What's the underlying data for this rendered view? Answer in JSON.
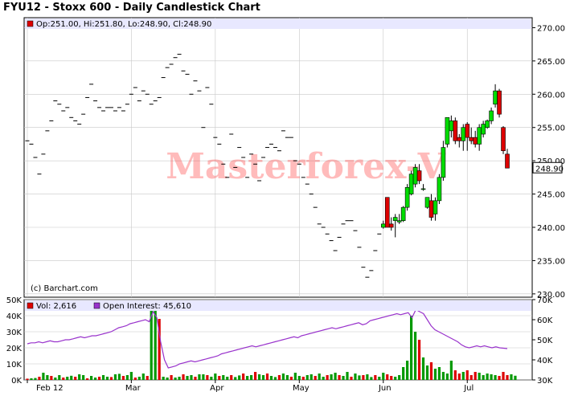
{
  "title": "FYU12 - Stoxx 600 - Daily Candlestick Chart",
  "watermark": "Masterforex-V",
  "credit": "(c) Barchart.com",
  "price_legend": "Op:251.00, Hi:251.80, Lo:248.90, Cl:248.90",
  "last_price_label": "248.90",
  "volume_legend": "Vol: 2,616",
  "oi_legend": "Open Interest: 45,610",
  "colors": {
    "up": "#00dd00",
    "down": "#dd0000",
    "neutral": "#000000",
    "oi": "#9933cc",
    "vol_up": "#009900",
    "vol_down": "#dd0000",
    "vol_neutral": "#000099",
    "frame": "#000000",
    "grid": "#c8c8c8",
    "legend_bg": "#e8e8ff"
  },
  "chart_data": [
    {
      "type": "candlestick",
      "title": "FYU12 - Stoxx 600 - Daily Candlestick Chart",
      "y_ticks": [
        "230.00",
        "235.00",
        "240.00",
        "245.00",
        "250.00",
        "255.00",
        "260.00",
        "265.00",
        "270.00"
      ],
      "ylim": [
        229.5,
        271.5
      ],
      "x_ticks": [
        "Feb 12",
        "Mar",
        "Apr",
        "May",
        "Jun",
        "Jul"
      ],
      "last_value": 248.9,
      "grid": true,
      "ohlc": [
        [
          253,
          253,
          253,
          253
        ],
        [
          252.5,
          252.5,
          252.5,
          252.5
        ],
        [
          250.5,
          250.5,
          250.5,
          250.5
        ],
        [
          248,
          248,
          248,
          248
        ],
        [
          251,
          251,
          251,
          251
        ],
        [
          254.5,
          254.5,
          254.5,
          254.5
        ],
        [
          256,
          256,
          256,
          256
        ],
        [
          259,
          259,
          259,
          259
        ],
        [
          258.5,
          258.5,
          258.5,
          258.5
        ],
        [
          257.5,
          257.5,
          257.5,
          257.5
        ],
        [
          258,
          258,
          258,
          258
        ],
        [
          256.5,
          256.5,
          256.5,
          256.5
        ],
        [
          256,
          256,
          256,
          256
        ],
        [
          255.5,
          255.5,
          255.5,
          255.5
        ],
        [
          257,
          257,
          257,
          257
        ],
        [
          259.5,
          259.5,
          259.5,
          259.5
        ],
        [
          261.5,
          261.5,
          261.5,
          261.5
        ],
        [
          259,
          259,
          259,
          259
        ],
        [
          258,
          258,
          258,
          258
        ],
        [
          257.5,
          257.5,
          257.5,
          257.5
        ],
        [
          258,
          258,
          258,
          258
        ],
        [
          258,
          258,
          258,
          258
        ],
        [
          257.5,
          257.5,
          257.5,
          257.5
        ],
        [
          258,
          258,
          258,
          258
        ],
        [
          257.5,
          257.5,
          257.5,
          257.5
        ],
        [
          258.5,
          258.5,
          258.5,
          258.5
        ],
        [
          260,
          260,
          260,
          260
        ],
        [
          261,
          261,
          261,
          261
        ],
        [
          259,
          259,
          259,
          259
        ],
        [
          260.5,
          260.5,
          260.5,
          260.5
        ],
        [
          260,
          260,
          260,
          260
        ],
        [
          258.5,
          258.5,
          258.5,
          258.5
        ],
        [
          259,
          259,
          259,
          259
        ],
        [
          259.5,
          259.5,
          259.5,
          259.5
        ],
        [
          262.5,
          262.5,
          262.5,
          262.5
        ],
        [
          264,
          264,
          264,
          264
        ],
        [
          264.5,
          264.5,
          264.5,
          264.5
        ],
        [
          265.5,
          265.5,
          265.5,
          265.5
        ],
        [
          266,
          266,
          266,
          266
        ],
        [
          263.5,
          263.5,
          263.5,
          263.5
        ],
        [
          263,
          263,
          263,
          263
        ],
        [
          260,
          260,
          260,
          260
        ],
        [
          262,
          262,
          262,
          262
        ],
        [
          260.5,
          260.5,
          260.5,
          260.5
        ],
        [
          255,
          255,
          255,
          255
        ],
        [
          261,
          261,
          261,
          261
        ],
        [
          258.5,
          258.5,
          258.5,
          258.5
        ],
        [
          253.5,
          253.5,
          253.5,
          253.5
        ],
        [
          252.5,
          252.5,
          252.5,
          252.5
        ],
        [
          249.5,
          249.5,
          249.5,
          249.5
        ],
        [
          247.5,
          247.5,
          247.5,
          247.5
        ],
        [
          254,
          254,
          254,
          254
        ],
        [
          249,
          249,
          249,
          249
        ],
        [
          252,
          252,
          252,
          252
        ],
        [
          250.5,
          250.5,
          250.5,
          250.5
        ],
        [
          247.5,
          247.5,
          247.5,
          247.5
        ],
        [
          251,
          251,
          251,
          251
        ],
        [
          249.5,
          249.5,
          249.5,
          249.5
        ],
        [
          247,
          247,
          247,
          247
        ],
        [
          250.5,
          250.5,
          250.5,
          250.5
        ],
        [
          252,
          252,
          252,
          252
        ],
        [
          252.5,
          252.5,
          252.5,
          252.5
        ],
        [
          252,
          252,
          252,
          252
        ],
        [
          251.5,
          251.5,
          251.5,
          251.5
        ],
        [
          254.5,
          254.5,
          254.5,
          254.5
        ],
        [
          253.5,
          253.5,
          253.5,
          253.5
        ],
        [
          253.5,
          253.5,
          253.5,
          253.5
        ],
        [
          250,
          250,
          250,
          250
        ],
        [
          249.5,
          249.5,
          249.5,
          249.5
        ],
        [
          247.5,
          247.5,
          247.5,
          247.5
        ],
        [
          246.5,
          246.5,
          246.5,
          246.5
        ],
        [
          245,
          245,
          245,
          245
        ],
        [
          243,
          243,
          243,
          243
        ],
        [
          240.5,
          240.5,
          240.5,
          240.5
        ],
        [
          240,
          240,
          240,
          240
        ],
        [
          239,
          239,
          239,
          239
        ],
        [
          238,
          238,
          238,
          238
        ],
        [
          236.5,
          236.5,
          236.5,
          236.5
        ],
        [
          238.5,
          238.5,
          238.5,
          238.5
        ],
        [
          240.5,
          240.5,
          240.5,
          240.5
        ],
        [
          241,
          241,
          241,
          241
        ],
        [
          241,
          241,
          241,
          241
        ],
        [
          239.5,
          239.5,
          239.5,
          239.5
        ],
        [
          237,
          237,
          237,
          237
        ],
        [
          234,
          234,
          234,
          234
        ],
        [
          232.5,
          232.5,
          232.5,
          232.5
        ],
        [
          233.5,
          233.5,
          233.5,
          233.5
        ],
        [
          236.5,
          236.5,
          236.5,
          236.5
        ],
        [
          239,
          239,
          239,
          239
        ],
        [
          240,
          241,
          239.8,
          240.5
        ],
        [
          244.5,
          244.5,
          240,
          240
        ],
        [
          240.5,
          241.5,
          239.5,
          240
        ],
        [
          241,
          242,
          238.5,
          241.5
        ],
        [
          240.8,
          242,
          240.5,
          241
        ],
        [
          241,
          243.2,
          240.8,
          243
        ],
        [
          243,
          246.5,
          242.5,
          246
        ],
        [
          245,
          248.5,
          244.8,
          248
        ],
        [
          246.5,
          249.5,
          246,
          249
        ],
        [
          248.5,
          249.5,
          246.5,
          247
        ],
        [
          245.8,
          246.5,
          245.5,
          245.8
        ],
        [
          243,
          244.5,
          242.8,
          244.5
        ],
        [
          244,
          245,
          241,
          241.5
        ],
        [
          242,
          244.5,
          241,
          244
        ],
        [
          244,
          248,
          243.5,
          247.5
        ],
        [
          247.5,
          253,
          247,
          252
        ],
        [
          252.5,
          256.5,
          252,
          256.5
        ],
        [
          254.5,
          256.8,
          253.5,
          256
        ],
        [
          256,
          256.5,
          252.5,
          253
        ],
        [
          253.5,
          254,
          252,
          253
        ],
        [
          253,
          255.5,
          251.5,
          255
        ],
        [
          255.5,
          255.8,
          251.5,
          253.5
        ],
        [
          253.5,
          255,
          252.5,
          253
        ],
        [
          253.5,
          254.5,
          252,
          252.5
        ],
        [
          252.5,
          255.5,
          251.5,
          255
        ],
        [
          254,
          256,
          253.5,
          255.5
        ],
        [
          255,
          256.2,
          254.8,
          256
        ],
        [
          256,
          258,
          255.5,
          257.5
        ],
        [
          258.5,
          261.5,
          258,
          260.5
        ],
        [
          260.5,
          260.8,
          256.5,
          257
        ],
        [
          255,
          255.2,
          251,
          251.5
        ],
        [
          251,
          251.8,
          248.9,
          248.9
        ]
      ],
      "volume": [
        800,
        1000,
        1200,
        2000,
        4500,
        3000,
        2500,
        1500,
        3000,
        1500,
        2000,
        2600,
        2000,
        3500,
        3000,
        1000,
        2500,
        1500,
        2000,
        3000,
        2000,
        1800,
        3500,
        3800,
        2500,
        3000,
        5000,
        1500,
        2000,
        4000,
        2500,
        44000,
        45000,
        38000,
        2000,
        1500,
        3000,
        1500,
        2000,
        3500,
        2500,
        3000,
        2000,
        3500,
        3500,
        3000,
        2000,
        4000,
        2500,
        3000,
        2000,
        3000,
        1800,
        2800,
        4000,
        2500,
        3000,
        5000,
        3500,
        3000,
        4000,
        2500,
        1800,
        3000,
        4000,
        3000,
        2000,
        4500,
        2500,
        2000,
        3000,
        3500,
        2500,
        4000,
        2000,
        3000,
        3500,
        4500,
        3000,
        2500,
        5000,
        2000,
        4000,
        2800,
        3000,
        3500,
        1800,
        3000,
        2000,
        4500,
        3500,
        2500,
        2000,
        3000,
        8000,
        12000,
        40000,
        30000,
        25000,
        14000,
        9000,
        11000,
        7000,
        8000,
        5000,
        4000,
        12000,
        6000,
        4000,
        5000,
        6000,
        3000,
        5000,
        4500,
        3000,
        4000,
        3500,
        3000,
        2500,
        5000,
        3000,
        3500,
        2616
      ],
      "open_interest": [
        48000,
        48500,
        48500,
        49000,
        48500,
        49000,
        49500,
        49000,
        49000,
        49500,
        50000,
        50000,
        50500,
        51000,
        51500,
        51000,
        51500,
        52000,
        52000,
        52500,
        53000,
        53500,
        54000,
        55000,
        56000,
        56500,
        57000,
        58000,
        58500,
        59000,
        59500,
        60000,
        59000,
        64000,
        61000,
        49000,
        40000,
        36000,
        36500,
        37000,
        38000,
        38500,
        39000,
        39500,
        39000,
        39500,
        40000,
        40500,
        41000,
        41500,
        42000,
        43000,
        43500,
        44000,
        44500,
        45000,
        45500,
        46000,
        46500,
        47000,
        46500,
        47000,
        47500,
        48000,
        48500,
        49000,
        49500,
        50000,
        50500,
        51000,
        51500,
        51000,
        52000,
        52500,
        53000,
        53500,
        54000,
        54500,
        55000,
        55500,
        56000,
        55500,
        56000,
        56500,
        57000,
        57500,
        58000,
        58500,
        57500,
        58000,
        59500,
        60000,
        60500,
        61000,
        61500,
        62000,
        62500,
        63000,
        62500,
        63000,
        63500,
        61000,
        65000,
        64000,
        63000,
        60000,
        57000,
        55000,
        54000,
        53000,
        52000,
        51000,
        50000,
        49000,
        47500,
        46500,
        46000,
        46500,
        47000,
        46500,
        47000,
        46500,
        46000,
        46500,
        46000,
        45800,
        45610
      ],
      "volume_ticks": [
        "0K",
        "10K",
        "20K",
        "30K",
        "40K",
        "50K"
      ],
      "volume_ylim": [
        0,
        50000
      ],
      "oi_ticks": [
        "30K",
        "40K",
        "50K",
        "60K",
        "70K"
      ],
      "oi_ylim": [
        30000,
        70000
      ]
    }
  ]
}
